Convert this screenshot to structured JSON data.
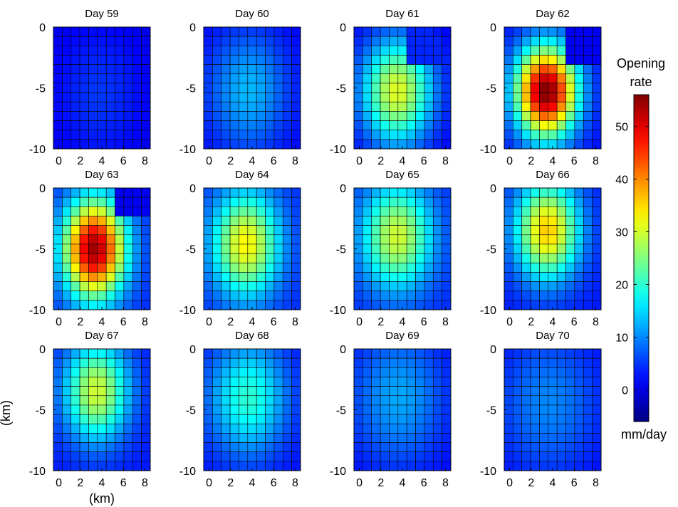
{
  "chart_data": {
    "type": "heatmap",
    "figure": {
      "ylabel": "(km)",
      "xlabel": "(km)"
    },
    "panel_axes": {
      "xlim": [
        -0.5,
        8.5
      ],
      "ylim": [
        -10,
        0
      ],
      "xticks": [
        "0",
        "2",
        "4",
        "6",
        "8"
      ],
      "yticks": [
        "0",
        "-5",
        "-10"
      ],
      "grid_cols": 11,
      "grid_rows": 13
    },
    "colorbar": {
      "title_line1": "Opening",
      "title_line2": "rate",
      "unit": "mm/day",
      "range": [
        -6,
        56
      ],
      "ticks": [
        "0",
        "10",
        "20",
        "30",
        "40",
        "50"
      ],
      "colormap": "jet"
    },
    "panels": [
      {
        "title": "Day 59",
        "day": 59,
        "peak": 5,
        "peak_x": 3.8,
        "peak_y": -5.5,
        "base": 0,
        "sigma_x": 3.0,
        "sigma_y": 4.0
      },
      {
        "title": "Day 60",
        "day": 60,
        "peak": 13,
        "peak_x": 3.6,
        "peak_y": -5.2,
        "base": 1,
        "sigma_x": 2.7,
        "sigma_y": 3.5
      },
      {
        "title": "Day 61",
        "day": 61,
        "peak": 31,
        "peak_x": 3.5,
        "peak_y": -5.3,
        "base": 1,
        "sigma_x": 2.3,
        "sigma_y": 3.0
      },
      {
        "title": "Day 62",
        "day": 62,
        "peak": 56,
        "peak_x": 3.4,
        "peak_y": -5.3,
        "base": 2,
        "sigma_x": 2.0,
        "sigma_y": 2.6
      },
      {
        "title": "Day 63",
        "day": 63,
        "peak": 54,
        "peak_x": 3.3,
        "peak_y": -5.0,
        "base": 4,
        "sigma_x": 2.0,
        "sigma_y": 2.8
      },
      {
        "title": "Day 64",
        "day": 64,
        "peak": 33,
        "peak_x": 3.4,
        "peak_y": -4.6,
        "base": 4,
        "sigma_x": 2.2,
        "sigma_y": 3.0
      },
      {
        "title": "Day 65",
        "day": 65,
        "peak": 30,
        "peak_x": 3.5,
        "peak_y": -4.0,
        "base": 4,
        "sigma_x": 2.3,
        "sigma_y": 3.0
      },
      {
        "title": "Day 66",
        "day": 66,
        "peak": 36,
        "peak_x": 3.5,
        "peak_y": -3.5,
        "base": 3,
        "sigma_x": 2.1,
        "sigma_y": 2.8
      },
      {
        "title": "Day 67",
        "day": 67,
        "peak": 30,
        "peak_x": 3.5,
        "peak_y": -3.5,
        "base": 3,
        "sigma_x": 2.1,
        "sigma_y": 2.8
      },
      {
        "title": "Day 68",
        "day": 68,
        "peak": 20,
        "peak_x": 3.6,
        "peak_y": -4.0,
        "base": 2,
        "sigma_x": 2.6,
        "sigma_y": 3.3
      },
      {
        "title": "Day 69",
        "day": 69,
        "peak": 12,
        "peak_x": 3.6,
        "peak_y": -4.0,
        "base": 1,
        "sigma_x": 3.2,
        "sigma_y": 4.0
      },
      {
        "title": "Day 70",
        "day": 70,
        "peak": 10,
        "peak_x": 3.6,
        "peak_y": -4.5,
        "base": 1,
        "sigma_x": 3.5,
        "sigma_y": 4.2
      }
    ]
  }
}
